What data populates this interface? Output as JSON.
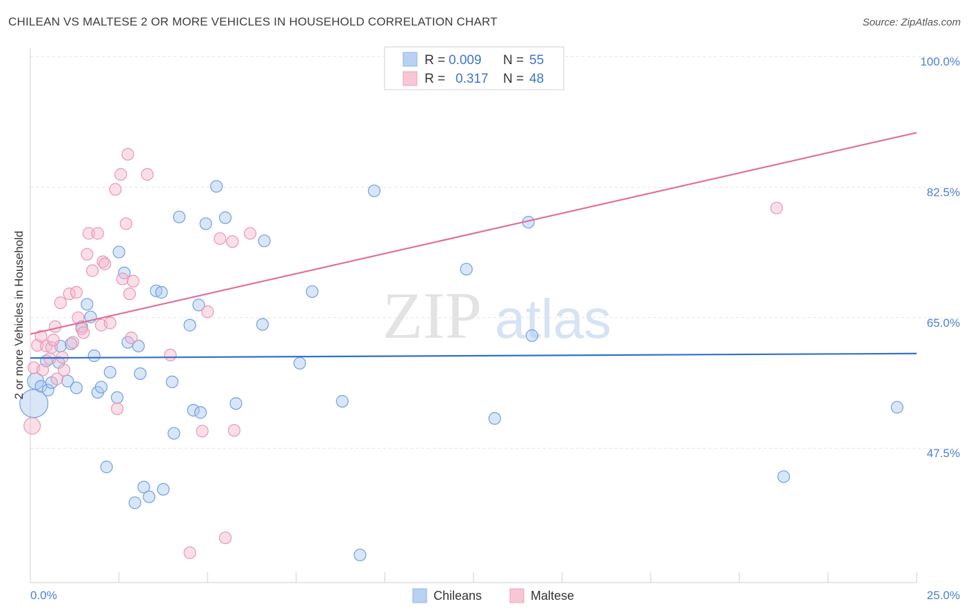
{
  "title": "CHILEAN VS MALTESE 2 OR MORE VEHICLES IN HOUSEHOLD CORRELATION CHART",
  "source": "Source: ZipAtlas.com",
  "watermark": {
    "zip": "ZIP",
    "atlas": "atlas"
  },
  "legend": {
    "r_label": "R =",
    "n_label": "N =",
    "rows": [
      {
        "r": "0.009",
        "n": "55"
      },
      {
        "r": "0.317",
        "n": "48"
      }
    ]
  },
  "chart_data": {
    "type": "scatter",
    "title": "CHILEAN VS MALTESE 2 OR MORE VEHICLES IN HOUSEHOLD CORRELATION CHART",
    "xlabel": "",
    "ylabel": "2 or more Vehicles in Household",
    "xlim": [
      0,
      25
    ],
    "ylim": [
      29.5,
      100
    ],
    "x_tick_labels": [
      "0.0%",
      "25.0%"
    ],
    "y_ticks": [
      47.5,
      65.0,
      82.5,
      100.0
    ],
    "y_tick_labels": [
      "47.5%",
      "65.0%",
      "82.5%",
      "100.0%"
    ],
    "colors": {
      "Chileans": "#a9c7ef",
      "Maltese": "#f5b8cb",
      "Chileans_line": "#2f6fcd",
      "Maltese_line": "#e0709a"
    },
    "series": [
      {
        "name": "Chileans",
        "trend": {
          "x0": 0,
          "y0": 59.6,
          "x1": 25,
          "y1": 60.2
        },
        "points": [
          [
            0.15,
            56.5,
            14
          ],
          [
            0.1,
            53.5,
            24
          ],
          [
            0.3,
            55.8,
            10
          ],
          [
            0.5,
            55.3,
            10
          ],
          [
            0.45,
            59.2,
            10
          ],
          [
            0.8,
            59.0,
            10
          ],
          [
            0.85,
            61.2,
            10
          ],
          [
            1.05,
            56.5,
            10
          ],
          [
            1.15,
            61.5,
            10
          ],
          [
            1.3,
            55.6,
            10
          ],
          [
            1.45,
            63.8,
            10
          ],
          [
            1.6,
            66.8,
            10
          ],
          [
            1.7,
            65.1,
            10
          ],
          [
            1.8,
            59.9,
            10
          ],
          [
            1.9,
            55.0,
            10
          ],
          [
            2.0,
            55.7,
            10
          ],
          [
            2.15,
            45.0,
            10
          ],
          [
            2.25,
            57.7,
            10
          ],
          [
            2.45,
            54.3,
            10
          ],
          [
            2.5,
            73.8,
            10
          ],
          [
            2.65,
            71.0,
            10
          ],
          [
            2.75,
            61.7,
            10
          ],
          [
            2.95,
            40.2,
            10
          ],
          [
            3.05,
            61.2,
            10
          ],
          [
            3.1,
            57.5,
            10
          ],
          [
            3.2,
            42.3,
            10
          ],
          [
            3.35,
            41.0,
            10
          ],
          [
            3.55,
            68.6,
            10
          ],
          [
            3.7,
            68.4,
            10
          ],
          [
            3.75,
            42.0,
            10
          ],
          [
            4.0,
            56.4,
            10
          ],
          [
            4.05,
            49.5,
            10
          ],
          [
            4.2,
            78.5,
            10
          ],
          [
            4.5,
            64.0,
            10
          ],
          [
            4.6,
            52.6,
            10
          ],
          [
            4.75,
            66.7,
            10
          ],
          [
            4.8,
            52.3,
            10
          ],
          [
            4.95,
            77.6,
            10
          ],
          [
            5.25,
            82.6,
            10
          ],
          [
            5.5,
            78.4,
            10
          ],
          [
            5.8,
            53.5,
            10
          ],
          [
            6.6,
            75.3,
            10
          ],
          [
            6.55,
            64.1,
            10
          ],
          [
            7.6,
            58.9,
            10
          ],
          [
            7.95,
            68.5,
            10
          ],
          [
            8.8,
            53.8,
            10
          ],
          [
            9.3,
            33.2,
            10
          ],
          [
            9.7,
            82.0,
            10
          ],
          [
            12.3,
            71.5,
            10
          ],
          [
            13.1,
            51.5,
            10
          ],
          [
            14.05,
            77.8,
            10
          ],
          [
            14.15,
            62.6,
            10
          ],
          [
            21.25,
            43.7,
            10
          ],
          [
            24.45,
            53.0,
            10
          ],
          [
            0.6,
            56.3,
            10
          ]
        ]
      },
      {
        "name": "Maltese",
        "trend": {
          "x0": 0,
          "y0": 62.8,
          "x1": 25,
          "y1": 89.8
        },
        "points": [
          [
            0.05,
            50.5,
            14
          ],
          [
            0.1,
            58.3,
            10
          ],
          [
            0.2,
            61.3,
            10
          ],
          [
            0.3,
            62.5,
            10
          ],
          [
            0.35,
            58.0,
            10
          ],
          [
            0.45,
            61.2,
            10
          ],
          [
            0.55,
            59.5,
            10
          ],
          [
            0.6,
            61.0,
            10
          ],
          [
            0.65,
            62.0,
            10
          ],
          [
            0.7,
            63.8,
            10
          ],
          [
            0.75,
            56.8,
            10
          ],
          [
            0.85,
            67.0,
            10
          ],
          [
            0.9,
            59.7,
            10
          ],
          [
            0.95,
            58.0,
            10
          ],
          [
            1.1,
            68.2,
            10
          ],
          [
            1.2,
            61.7,
            10
          ],
          [
            1.3,
            68.4,
            10
          ],
          [
            1.35,
            65.0,
            10
          ],
          [
            1.45,
            63.5,
            10
          ],
          [
            1.5,
            63.0,
            10
          ],
          [
            1.6,
            73.5,
            10
          ],
          [
            1.65,
            76.3,
            10
          ],
          [
            1.75,
            71.3,
            10
          ],
          [
            1.9,
            76.3,
            10
          ],
          [
            2.0,
            64.0,
            10
          ],
          [
            2.05,
            72.5,
            10
          ],
          [
            2.1,
            72.2,
            10
          ],
          [
            2.25,
            64.3,
            10
          ],
          [
            2.4,
            82.2,
            10
          ],
          [
            2.45,
            52.8,
            10
          ],
          [
            2.55,
            84.2,
            10
          ],
          [
            2.6,
            70.2,
            10
          ],
          [
            2.7,
            77.6,
            10
          ],
          [
            2.75,
            86.9,
            10
          ],
          [
            2.8,
            68.2,
            10
          ],
          [
            2.85,
            62.3,
            10
          ],
          [
            3.3,
            84.2,
            10
          ],
          [
            3.95,
            60.0,
            10
          ],
          [
            4.5,
            33.5,
            10
          ],
          [
            4.85,
            49.8,
            10
          ],
          [
            5.0,
            65.8,
            10
          ],
          [
            5.35,
            75.6,
            10
          ],
          [
            5.5,
            35.5,
            10
          ],
          [
            5.7,
            75.2,
            10
          ],
          [
            5.75,
            49.9,
            10
          ],
          [
            6.2,
            76.3,
            10
          ],
          [
            21.05,
            79.7,
            10
          ],
          [
            2.9,
            69.9,
            10
          ]
        ]
      }
    ]
  },
  "bottom_legend": [
    "Chileans",
    "Maltese"
  ]
}
